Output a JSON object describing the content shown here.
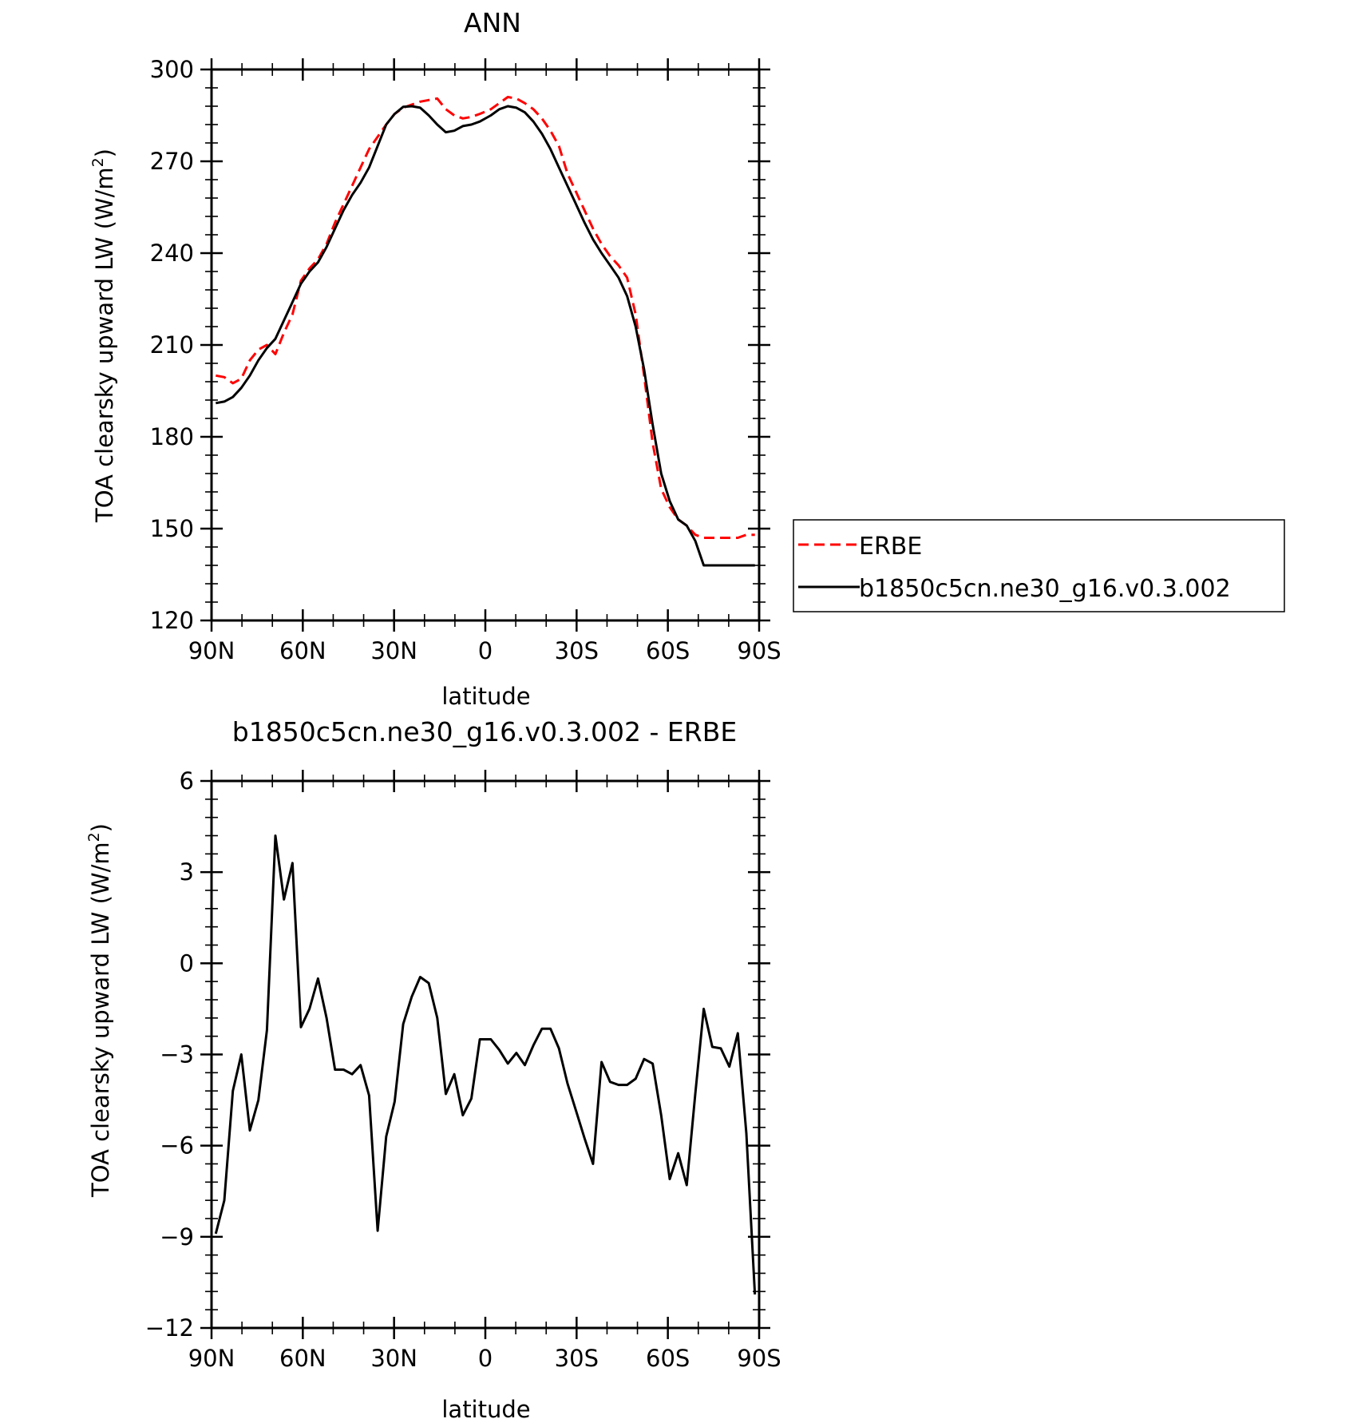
{
  "chart_data": [
    {
      "type": "line",
      "title": "ANN",
      "xlabel": "latitude",
      "ylabel_main": "TOA clearsky upward LW (W/m",
      "ylabel_sup": "2",
      "ylabel_close": ")",
      "xlim": [
        90,
        -90
      ],
      "ylim": [
        120,
        300
      ],
      "xticks": [
        90,
        60,
        30,
        0,
        -30,
        -60,
        -90
      ],
      "xtick_labels": [
        "90N",
        "60N",
        "30N",
        "0",
        "30S",
        "60S",
        "90S"
      ],
      "yticks": [
        120,
        150,
        180,
        210,
        240,
        270,
        300
      ],
      "ytick_labels": [
        "120",
        "150",
        "180",
        "210",
        "240",
        "270",
        "300"
      ],
      "legend_position": "right, outside plot",
      "x": [
        88.6,
        85.8,
        83.0,
        80.2,
        77.4,
        74.6,
        71.8,
        69.0,
        66.2,
        63.4,
        60.6,
        57.8,
        55.0,
        52.2,
        49.4,
        46.6,
        43.8,
        41.0,
        38.2,
        35.4,
        32.6,
        29.8,
        27.0,
        24.2,
        21.4,
        18.6,
        15.8,
        13.0,
        10.2,
        7.4,
        4.6,
        1.8,
        -1.8,
        -4.6,
        -7.4,
        -10.2,
        -13.0,
        -15.8,
        -18.6,
        -21.4,
        -24.2,
        -27.0,
        -29.8,
        -32.6,
        -35.4,
        -38.2,
        -41.0,
        -43.8,
        -46.6,
        -49.4,
        -52.2,
        -55.0,
        -57.8,
        -60.6,
        -63.4,
        -66.2,
        -69.0,
        -71.8,
        -74.6,
        -77.4,
        -80.2,
        -83.0,
        -85.8,
        -88.6
      ],
      "series": [
        {
          "name": "ERBE",
          "color": "#ff0000",
          "dash": "dashed",
          "values": [
            200,
            199.5,
            197.5,
            199,
            205,
            208.5,
            210,
            207,
            214,
            220,
            231,
            235,
            238,
            243,
            250,
            256,
            262,
            268,
            274,
            278,
            282,
            285.5,
            287.5,
            288.5,
            289.5,
            290,
            290.5,
            287,
            285,
            284,
            284.5,
            285.5,
            287,
            289,
            291,
            290.5,
            289,
            287,
            284,
            280,
            275,
            266,
            260,
            254,
            248,
            243,
            239,
            236,
            232,
            220,
            200,
            178,
            163,
            157,
            153,
            151,
            148,
            147,
            147,
            147,
            147,
            147,
            148,
            148
          ]
        },
        {
          "name": "b1850c5cn.ne30_g16.v0.3.002",
          "color": "#000000",
          "dash": "solid",
          "values": [
            191,
            191.5,
            193,
            196,
            200,
            205,
            209,
            212,
            218,
            224,
            230,
            234,
            237,
            242,
            248,
            254,
            259,
            263,
            268,
            275,
            282,
            285.5,
            287.8,
            288,
            287.5,
            285,
            282,
            279.5,
            280,
            281.5,
            282,
            283,
            285,
            287,
            288,
            287.5,
            286,
            283,
            279,
            274,
            268,
            262,
            256,
            250,
            244.5,
            240,
            236,
            232,
            226,
            216,
            202,
            184,
            168,
            159,
            153,
            151,
            146,
            138,
            138,
            138,
            138,
            138,
            138,
            138
          ]
        }
      ]
    },
    {
      "type": "line",
      "title": "b1850c5cn.ne30_g16.v0.3.002 - ERBE",
      "xlabel": "latitude",
      "ylabel_main": "TOA clearsky upward LW (W/m",
      "ylabel_sup": "2",
      "ylabel_close": ")",
      "xlim": [
        90,
        -90
      ],
      "ylim": [
        -12,
        6
      ],
      "xticks": [
        90,
        60,
        30,
        0,
        -30,
        -60,
        -90
      ],
      "xtick_labels": [
        "90N",
        "60N",
        "30N",
        "0",
        "30S",
        "60S",
        "90S"
      ],
      "yticks": [
        -12,
        -9,
        -6,
        -3,
        0,
        3,
        6
      ],
      "ytick_labels": [
        "−12",
        "−9",
        "−6",
        "−3",
        "0",
        "3",
        "6"
      ],
      "x": [
        88.6,
        85.8,
        83.0,
        80.2,
        77.4,
        74.6,
        71.8,
        69.0,
        66.2,
        63.4,
        60.6,
        57.8,
        55.0,
        52.2,
        49.4,
        46.6,
        43.8,
        41.0,
        38.2,
        35.4,
        32.6,
        29.8,
        27.0,
        24.2,
        21.4,
        18.6,
        15.8,
        13.0,
        10.2,
        7.4,
        4.6,
        1.8,
        -1.8,
        -4.6,
        -7.4,
        -10.2,
        -13.0,
        -15.8,
        -18.6,
        -21.4,
        -24.2,
        -27.0,
        -29.8,
        -32.6,
        -35.4,
        -38.2,
        -41.0,
        -43.8,
        -46.6,
        -49.4,
        -52.2,
        -55.0,
        -57.8,
        -60.6,
        -63.4,
        -66.2,
        -69.0,
        -71.8,
        -74.6,
        -77.4,
        -80.2,
        -83.0,
        -85.8,
        -88.6
      ],
      "series": [
        {
          "name": "",
          "color": "#000000",
          "dash": "solid",
          "values": [
            -8.9,
            -7.8,
            -4.2,
            -3.0,
            -5.5,
            -4.5,
            -2.2,
            4.2,
            2.1,
            3.3,
            -2.1,
            -1.5,
            -0.5,
            -1.8,
            -3.5,
            -3.5,
            -3.65,
            -3.35,
            -4.35,
            -8.8,
            -5.7,
            -4.55,
            -2.0,
            -1.1,
            -0.45,
            -0.65,
            -1.8,
            -4.3,
            -3.65,
            -5.0,
            -4.45,
            -2.5,
            -2.5,
            -2.85,
            -3.3,
            -2.95,
            -3.35,
            -2.7,
            -2.15,
            -2.15,
            -2.8,
            -3.95,
            -4.85,
            -5.75,
            -6.6,
            -3.25,
            -3.9,
            -4.0,
            -4.0,
            -3.8,
            -3.15,
            -3.3,
            -5.0,
            -7.1,
            -6.25,
            -7.3,
            -4.3,
            -1.5,
            -2.75,
            -2.8,
            -3.4,
            -2.3,
            -5.6,
            -10.9
          ]
        }
      ]
    }
  ]
}
